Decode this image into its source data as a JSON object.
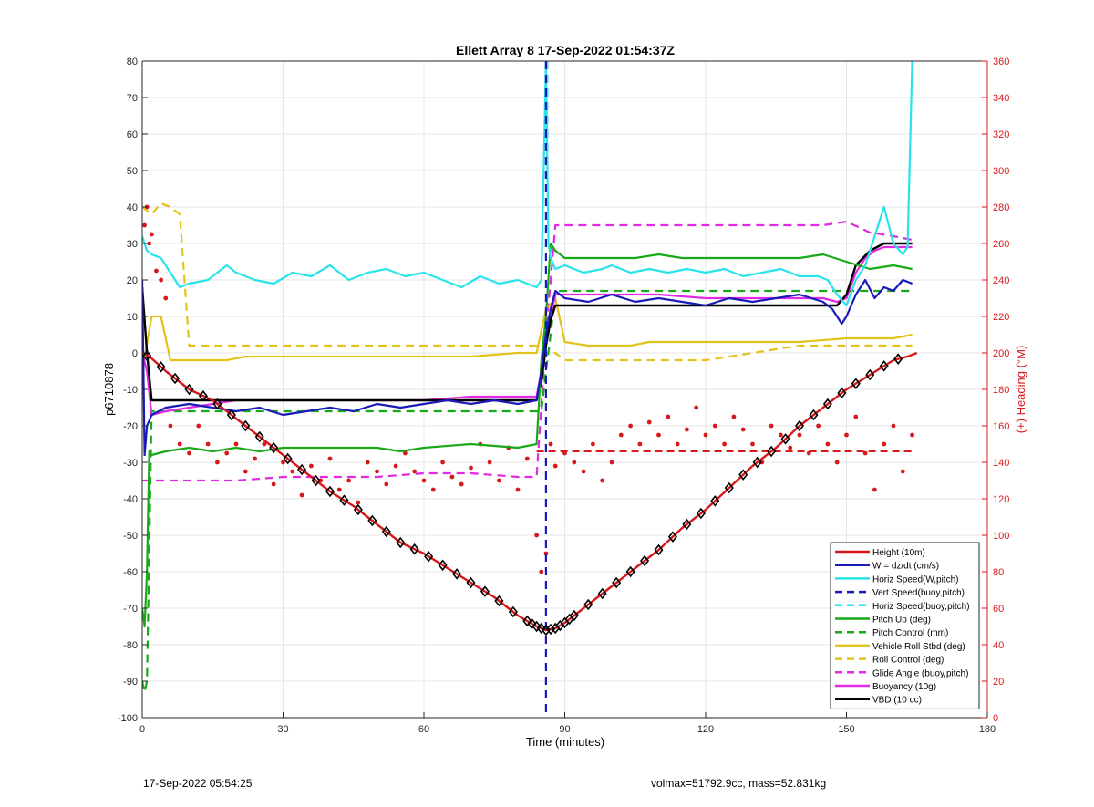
{
  "footer": {
    "left": "17-Sep-2022 05:54:25",
    "right": "volmax=51792.9cc, mass=52.831kg"
  },
  "chart_data": {
    "type": "line",
    "title": "Ellett Array 8 17-Sep-2022 01:54:37Z",
    "xlabel": "Time (minutes)",
    "ylabel": "p6710878",
    "y2label": "(+) Heading (°M)",
    "xlim": [
      0,
      180
    ],
    "ylim": [
      -100,
      80
    ],
    "y2lim": [
      0,
      360
    ],
    "xticks": [
      0,
      30,
      60,
      90,
      120,
      150,
      180
    ],
    "yticks": [
      -100,
      -90,
      -80,
      -70,
      -60,
      -50,
      -40,
      -30,
      -20,
      -10,
      0,
      10,
      20,
      30,
      40,
      50,
      60,
      70,
      80
    ],
    "y2ticks": [
      0,
      20,
      40,
      60,
      80,
      100,
      120,
      140,
      160,
      180,
      200,
      220,
      240,
      260,
      280,
      300,
      320,
      340,
      360
    ],
    "grid": true,
    "legend_position": "bottom-right",
    "colors": {
      "height": "#d7191c",
      "w": "#1a1ab8",
      "horiz": "#29e3ea",
      "pitch": "#18a818",
      "roll": "#e3c31a",
      "glide": "#e22ae2",
      "buoyancy": "#e22ae2",
      "vbd": "#000000",
      "heading": "#d7191c",
      "axis2": "#d7191c"
    },
    "series": [
      {
        "name": "Height (10m)",
        "key": "height",
        "style": "solid",
        "color": "#d7191c",
        "x": [
          0,
          2,
          5,
          10,
          15,
          20,
          25,
          30,
          35,
          40,
          45,
          50,
          55,
          60,
          65,
          70,
          75,
          80,
          84,
          86,
          88,
          90,
          93,
          97,
          100,
          105,
          110,
          115,
          120,
          125,
          130,
          135,
          140,
          145,
          150,
          155,
          160,
          163,
          165
        ],
        "y": [
          0,
          -1.5,
          -5,
          -10,
          -13,
          -18,
          -23,
          -28,
          -33,
          -38,
          -42,
          -47,
          -52,
          -55,
          -59,
          -63,
          -67,
          -72,
          -75,
          -76,
          -75.5,
          -74,
          -71,
          -67,
          -64,
          -59,
          -54,
          -48,
          -43,
          -37,
          -31,
          -26,
          -20,
          -15,
          -10,
          -6,
          -2,
          -1,
          0
        ]
      },
      {
        "name": "W = dz/dt (cm/s)",
        "key": "w",
        "style": "solid",
        "color": "#1a1ab8",
        "x": [
          0,
          0.5,
          1,
          2,
          5,
          10,
          15,
          20,
          25,
          30,
          35,
          40,
          45,
          50,
          55,
          60,
          65,
          70,
          75,
          80,
          84,
          85,
          86,
          87,
          88,
          90,
          95,
          100,
          105,
          110,
          115,
          120,
          125,
          130,
          135,
          140,
          145,
          147,
          149,
          150,
          152,
          154,
          156,
          158,
          160,
          162,
          164
        ],
        "y": [
          20,
          -28,
          -20,
          -17,
          -15,
          -14,
          -15,
          -16,
          -15,
          -17,
          -16,
          -15,
          -16,
          -14,
          -15,
          -14,
          -13,
          -14,
          -13,
          -14,
          -13,
          -5,
          5,
          12,
          17,
          15,
          14,
          16,
          14,
          15,
          14,
          13,
          15,
          14,
          15,
          16,
          14,
          12,
          8,
          10,
          16,
          20,
          15,
          18,
          17,
          20,
          19
        ]
      },
      {
        "name": "Horiz Speed(W,pitch)",
        "key": "horiz",
        "style": "solid",
        "color": "#29e3ea",
        "x": [
          0,
          1,
          2,
          4,
          6,
          8,
          10,
          14,
          18,
          20,
          24,
          28,
          32,
          36,
          40,
          44,
          48,
          52,
          56,
          60,
          64,
          68,
          72,
          76,
          80,
          84,
          85,
          86,
          86.5,
          87,
          88,
          90,
          94,
          98,
          100,
          104,
          108,
          112,
          116,
          120,
          124,
          128,
          132,
          136,
          140,
          144,
          146,
          148,
          150,
          152,
          154,
          156,
          158,
          160,
          162,
          163,
          164
        ],
        "y": [
          32,
          28,
          27,
          26,
          22,
          18,
          19,
          20,
          24,
          22,
          20,
          19,
          22,
          21,
          24,
          20,
          22,
          23,
          21,
          22,
          20,
          18,
          21,
          19,
          20,
          18,
          20,
          80,
          30,
          26,
          23,
          24,
          22,
          23,
          24,
          22,
          23,
          22,
          23,
          22,
          23,
          21,
          22,
          23,
          21,
          21,
          20,
          16,
          13,
          20,
          24,
          32,
          40,
          30,
          27,
          29,
          80
        ]
      },
      {
        "name": "Vert Speed(buoy,pitch)",
        "key": "w",
        "style": "dashed",
        "color": "#1a1ab8",
        "x": [
          86,
          86
        ],
        "y": [
          80,
          -100
        ]
      },
      {
        "name": "Horiz Speed(buoy,pitch)",
        "key": "horiz",
        "style": "dashed",
        "color": "#29e3ea",
        "x": [
          86.3,
          86.3
        ],
        "y": [
          80,
          40
        ]
      },
      {
        "name": "Pitch Up (deg)",
        "key": "pitch",
        "style": "solid",
        "color": "#18a818",
        "x": [
          0,
          0.5,
          1,
          1.5,
          2,
          5,
          10,
          15,
          20,
          25,
          30,
          40,
          50,
          55,
          60,
          70,
          80,
          84,
          85,
          86,
          87,
          88,
          90,
          95,
          100,
          105,
          110,
          115,
          120,
          125,
          130,
          135,
          140,
          145,
          150,
          155,
          160,
          164
        ],
        "y": [
          -70,
          -75,
          -60,
          -27,
          -28,
          -27,
          -26,
          -27,
          -26,
          -27,
          -26,
          -26,
          -26,
          -27,
          -26,
          -25,
          -26,
          -25,
          -2,
          10,
          30,
          28,
          26,
          26,
          26,
          26,
          27,
          26,
          26,
          26,
          26,
          26,
          26,
          27,
          25,
          23,
          24,
          23
        ]
      },
      {
        "name": "Pitch Control (mm)",
        "key": "pitch",
        "style": "dashed",
        "color": "#18a818",
        "x": [
          0,
          0.5,
          1,
          2,
          85,
          86,
          87,
          88,
          164
        ],
        "y": [
          -90,
          -93,
          -90,
          -16,
          -16,
          -5,
          5,
          17,
          17
        ]
      },
      {
        "name": "Vehicle Roll Stbd (deg)",
        "key": "roll",
        "style": "solid",
        "color": "#e3c31a",
        "x": [
          0,
          2,
          4,
          6,
          8,
          10,
          14,
          18,
          22,
          26,
          30,
          40,
          50,
          60,
          70,
          80,
          84,
          86,
          88,
          90,
          95,
          100,
          104,
          108,
          112,
          116,
          120,
          130,
          140,
          150,
          160,
          164
        ],
        "y": [
          -5,
          10,
          10,
          -2,
          -2,
          -2,
          -2,
          -2,
          -1,
          -1,
          -1,
          -1,
          -1,
          -1,
          -1,
          0,
          0,
          12,
          15,
          3,
          2,
          2,
          2,
          3,
          3,
          3,
          3,
          3,
          3,
          4,
          4,
          5
        ]
      },
      {
        "name": "Roll Control (deg)",
        "key": "roll",
        "style": "dashed",
        "color": "#e3c31a",
        "x": [
          0,
          2,
          4,
          6,
          8,
          10,
          20,
          40,
          60,
          80,
          84,
          86,
          88,
          90,
          100,
          120,
          140,
          160,
          164
        ],
        "y": [
          40,
          38,
          41,
          40,
          38,
          2,
          2,
          2,
          2,
          2,
          2,
          0,
          0,
          -2,
          -2,
          -2,
          2,
          2,
          2
        ]
      },
      {
        "name": "Glide Angle (buoy,pitch)",
        "key": "glide",
        "style": "dashed",
        "color": "#e22ae2",
        "x": [
          0,
          2,
          10,
          20,
          30,
          40,
          50,
          60,
          70,
          80,
          84,
          86,
          88,
          90,
          100,
          110,
          120,
          130,
          140,
          145,
          150,
          155,
          160,
          164
        ],
        "y": [
          -35,
          -35,
          -35,
          -35,
          -34,
          -34,
          -34,
          -33,
          -33,
          -34,
          -34,
          5,
          35,
          35,
          35,
          35,
          35,
          35,
          35,
          35,
          36,
          33,
          32,
          31
        ]
      },
      {
        "name": "Buoyancy (10g)",
        "key": "buoyancy",
        "style": "solid",
        "color": "#e22ae2",
        "x": [
          0,
          1,
          2,
          5,
          10,
          15,
          20,
          30,
          40,
          50,
          60,
          70,
          80,
          84,
          85,
          86,
          87,
          88,
          90,
          100,
          110,
          120,
          130,
          140,
          145,
          148,
          150,
          152,
          154,
          156,
          158,
          160,
          164
        ],
        "y": [
          0,
          -5,
          -17,
          -16,
          -15,
          -14,
          -13,
          -13,
          -13,
          -13,
          -13,
          -12,
          -12,
          -12,
          -5,
          2,
          10,
          16,
          16,
          16,
          16,
          15,
          15,
          15,
          15,
          14,
          15,
          22,
          26,
          28,
          29,
          29,
          29
        ]
      },
      {
        "name": "VBD (10 cc)",
        "key": "vbd",
        "style": "solid",
        "color": "#000000",
        "x": [
          0,
          1,
          2,
          5,
          10,
          20,
          30,
          40,
          50,
          60,
          70,
          80,
          84,
          85,
          86,
          87,
          88,
          90,
          100,
          110,
          120,
          130,
          140,
          145,
          148,
          150,
          152,
          155,
          158,
          160,
          164
        ],
        "y": [
          18,
          0,
          -13,
          -13,
          -13,
          -13,
          -13,
          -13,
          -13,
          -13,
          -13,
          -13,
          -13,
          -8,
          2,
          9,
          13,
          13,
          13,
          13,
          13,
          13,
          13,
          13,
          13,
          16,
          24,
          28,
          30,
          30,
          30
        ]
      }
    ],
    "heading_points": {
      "name": "Heading",
      "key": "heading",
      "axis": "right",
      "x": [
        0.5,
        1,
        1.5,
        2,
        3,
        4,
        5,
        6,
        8,
        10,
        12,
        14,
        16,
        18,
        20,
        22,
        24,
        26,
        28,
        30,
        32,
        34,
        36,
        38,
        40,
        42,
        44,
        46,
        48,
        50,
        52,
        54,
        56,
        58,
        60,
        62,
        64,
        66,
        68,
        70,
        72,
        74,
        76,
        78,
        80,
        82,
        84,
        85,
        86,
        87,
        88,
        90,
        92,
        94,
        96,
        98,
        100,
        102,
        104,
        106,
        108,
        110,
        112,
        114,
        116,
        118,
        120,
        122,
        124,
        126,
        128,
        130,
        132,
        134,
        136,
        138,
        140,
        142,
        144,
        146,
        148,
        150,
        152,
        154,
        156,
        158,
        160,
        162,
        164
      ],
      "y": [
        270,
        280,
        260,
        265,
        245,
        240,
        230,
        160,
        150,
        145,
        160,
        150,
        140,
        145,
        150,
        135,
        142,
        150,
        128,
        140,
        135,
        122,
        138,
        130,
        142,
        125,
        130,
        118,
        140,
        135,
        128,
        138,
        145,
        135,
        130,
        125,
        140,
        132,
        128,
        137,
        150,
        140,
        130,
        148,
        125,
        142,
        100,
        80,
        90,
        150,
        138,
        145,
        140,
        135,
        150,
        130,
        140,
        155,
        160,
        150,
        162,
        155,
        165,
        150,
        158,
        170,
        155,
        160,
        150,
        165,
        158,
        150,
        140,
        160,
        155,
        148,
        155,
        145,
        160,
        150,
        140,
        155,
        165,
        145,
        125,
        150,
        160,
        135,
        155
      ]
    },
    "heading_dashed_line": {
      "key": "heading",
      "x": [
        84,
        164
      ],
      "y2": [
        146,
        146
      ]
    },
    "legend": [
      "Height (10m)",
      "W = dz/dt (cm/s)",
      "Horiz Speed(W,pitch)",
      "Vert Speed(buoy,pitch)",
      "Horiz Speed(buoy,pitch)",
      "Pitch Up (deg)",
      "Pitch Control (mm)",
      "Vehicle Roll Stbd (deg)",
      "Roll Control (deg)",
      "Glide Angle (buoy,pitch)",
      "Buoyancy (10g)",
      "VBD (10 cc)"
    ]
  }
}
